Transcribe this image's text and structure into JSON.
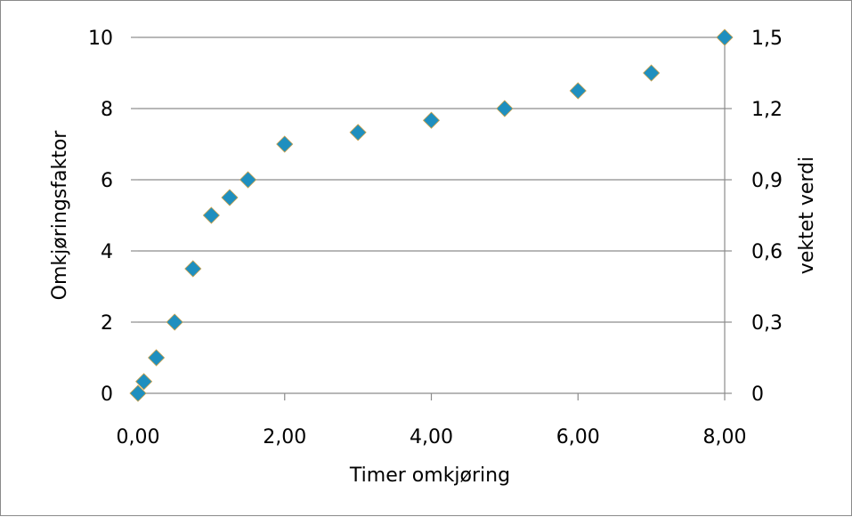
{
  "chart_data": {
    "type": "scatter",
    "title": "",
    "xlabel": "Timer omkjøring",
    "ylabel": "Omkjøringsfaktor",
    "y2label": "vektet verdi",
    "xlim": [
      0,
      8
    ],
    "ylim": [
      0,
      10
    ],
    "y2lim": [
      0,
      1.5
    ],
    "grid": true,
    "legend": "none",
    "x_ticks": [
      "0,00",
      "2,00",
      "4,00",
      "6,00",
      "8,00"
    ],
    "x_tick_values": [
      0,
      2,
      4,
      6,
      8
    ],
    "y_ticks": [
      "0",
      "2",
      "4",
      "6",
      "8",
      "10"
    ],
    "y_tick_values": [
      0,
      2,
      4,
      6,
      8,
      10
    ],
    "y2_ticks": [
      "0",
      "0,3",
      "0,6",
      "0,9",
      "1,2",
      "1,5"
    ],
    "y2_tick_values": [
      0,
      0.3,
      0.6,
      0.9,
      1.2,
      1.5
    ],
    "marker_color": "#1f8fbf",
    "marker_edge_color": "#c8a04a",
    "series": [
      {
        "x": [
          0,
          0.08,
          0.25,
          0.5,
          0.75,
          1.0,
          1.25,
          1.5,
          2.0,
          3.0,
          4.0,
          5.0,
          6.0,
          7.0,
          8.0
        ],
        "y": [
          0,
          0.33,
          1.0,
          2.0,
          3.5,
          5.0,
          5.5,
          6.0,
          7.0,
          7.33,
          7.67,
          8.0,
          8.5,
          9.0,
          10.0
        ]
      }
    ]
  }
}
